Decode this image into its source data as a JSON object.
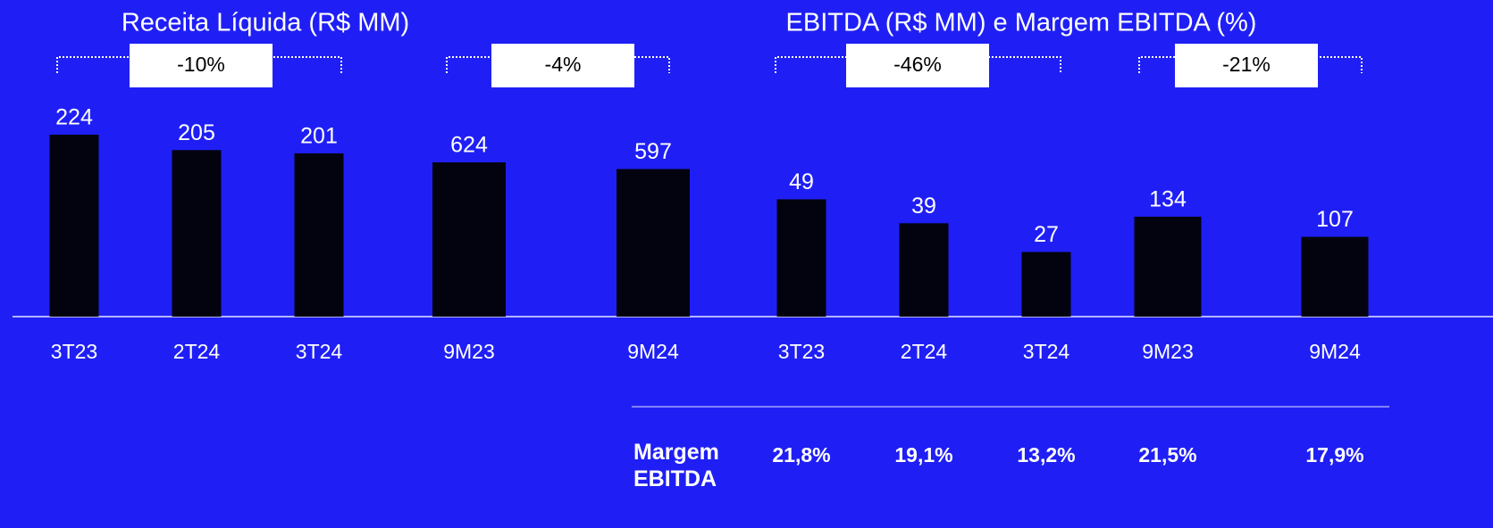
{
  "chart_data": [
    {
      "type": "bar",
      "title": "Receita Líquida (R$ MM)",
      "annotation": "-10%",
      "categories": [
        "3T23",
        "2T24",
        "3T24"
      ],
      "values": [
        224,
        205,
        201
      ],
      "color": "#03030f",
      "ylim": [
        0,
        280
      ]
    },
    {
      "type": "bar",
      "annotation": "-4%",
      "categories": [
        "9M23",
        "9M24"
      ],
      "values": [
        624,
        597
      ],
      "color": "#03030f",
      "ylim": [
        0,
        920
      ]
    },
    {
      "type": "bar",
      "title": "EBITDA (R$ MM) e Margem EBITDA (%)",
      "annotation": "-46%",
      "categories": [
        "3T23",
        "2T24",
        "3T24"
      ],
      "values": [
        49,
        39,
        27
      ],
      "color": "#03030f",
      "ylim": [
        0,
        95
      ]
    },
    {
      "type": "bar",
      "annotation": "-21%",
      "categories": [
        "9M23",
        "9M24"
      ],
      "values": [
        134,
        107
      ],
      "color": "#03030f",
      "ylim": [
        0,
        305
      ]
    }
  ],
  "margin": {
    "label": "Margem EBITDA",
    "values": [
      21.8,
      19.1,
      13.2,
      21.5,
      17.9
    ],
    "value_labels": [
      "21,8%",
      "19,1%",
      "13,2%",
      "21,5%",
      "17,9%"
    ]
  }
}
